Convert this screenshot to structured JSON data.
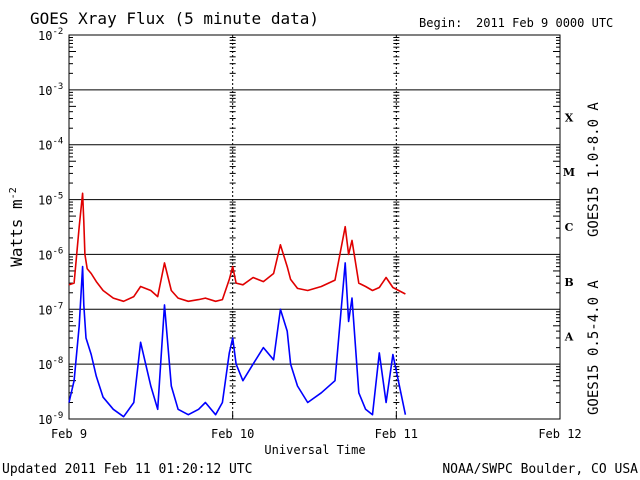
{
  "header": {
    "title": "GOES Xray Flux (5 minute data)",
    "begin_label": "Begin:",
    "begin_value": "2011 Feb 9 0000 UTC"
  },
  "footer": {
    "updated": "Updated 2011 Feb 11 01:20:12 UTC",
    "credit": "NOAA/SWPC Boulder, CO USA"
  },
  "chart_data": {
    "type": "line",
    "title": "GOES Xray Flux (5 minute data)",
    "xlabel": "Universal Time",
    "ylabel": "Watts m",
    "ylabel_exponent": "-2",
    "yscale": "log",
    "ylim": [
      1e-09,
      0.01
    ],
    "xlim": [
      "2011-02-09T00:00",
      "2011-02-12T00:00"
    ],
    "x_ticks": [
      "Feb 9",
      "Feb 10",
      "Feb 11",
      "Feb 12"
    ],
    "y_ticks": [
      {
        "base": "10",
        "exp": "-2",
        "value": 0.01
      },
      {
        "base": "10",
        "exp": "-3",
        "value": 0.001
      },
      {
        "base": "10",
        "exp": "-4",
        "value": 0.0001
      },
      {
        "base": "10",
        "exp": "-5",
        "value": 1e-05
      },
      {
        "base": "10",
        "exp": "-6",
        "value": 1e-06
      },
      {
        "base": "10",
        "exp": "-7",
        "value": 1e-07
      },
      {
        "base": "10",
        "exp": "-8",
        "value": 1e-08
      },
      {
        "base": "10",
        "exp": "-9",
        "value": 1e-09
      }
    ],
    "flare_classes": [
      {
        "label": "X",
        "value": 0.000316
      },
      {
        "label": "M",
        "value": 3.16e-05
      },
      {
        "label": "C",
        "value": 3.16e-06
      },
      {
        "label": "B",
        "value": 3.16e-07
      },
      {
        "label": "A",
        "value": 3.16e-08
      }
    ],
    "grid": "horizontal lines at each decade; dashed vertical lines at day boundaries",
    "series": [
      {
        "name": "GOES15 1.0-8.0 A",
        "color": "#e00000",
        "x": [
          "2011-02-09T00:00",
          "2011-02-09T00:45",
          "2011-02-09T01:30",
          "2011-02-09T02:00",
          "2011-02-09T02:10",
          "2011-02-09T02:20",
          "2011-02-09T02:40",
          "2011-02-09T03:15",
          "2011-02-09T04:00",
          "2011-02-09T05:00",
          "2011-02-09T06:30",
          "2011-02-09T08:00",
          "2011-02-09T09:30",
          "2011-02-09T10:30",
          "2011-02-09T12:00",
          "2011-02-09T13:00",
          "2011-02-09T14:00",
          "2011-02-09T15:00",
          "2011-02-09T16:00",
          "2011-02-09T17:30",
          "2011-02-09T19:00",
          "2011-02-09T20:00",
          "2011-02-09T21:30",
          "2011-02-09T22:30",
          "2011-02-09T23:30",
          "2011-02-10T00:00",
          "2011-02-10T00:30",
          "2011-02-10T01:30",
          "2011-02-10T03:00",
          "2011-02-10T04:30",
          "2011-02-10T06:00",
          "2011-02-10T07:00",
          "2011-02-10T08:00",
          "2011-02-10T08:30",
          "2011-02-10T09:30",
          "2011-02-10T11:00",
          "2011-02-10T13:00",
          "2011-02-10T15:00",
          "2011-02-10T16:30",
          "2011-02-10T17:00",
          "2011-02-10T17:30",
          "2011-02-10T18:30",
          "2011-02-10T19:30",
          "2011-02-10T20:30",
          "2011-02-10T21:30",
          "2011-02-10T22:30",
          "2011-02-10T23:30",
          "2011-02-11T01:20"
        ],
        "y": [
          2.8e-07,
          3e-07,
          3.2e-06,
          1.3e-05,
          4e-06,
          1e-06,
          5.5e-07,
          4.5e-07,
          3.2e-07,
          2.2e-07,
          1.6e-07,
          1.4e-07,
          1.7e-07,
          2.6e-07,
          2.2e-07,
          1.7e-07,
          7e-07,
          2.2e-07,
          1.6e-07,
          1.4e-07,
          1.5e-07,
          1.6e-07,
          1.4e-07,
          1.5e-07,
          3.5e-07,
          6e-07,
          3e-07,
          2.8e-07,
          3.8e-07,
          3.2e-07,
          4.5e-07,
          1.5e-06,
          6e-07,
          3.5e-07,
          2.4e-07,
          2.2e-07,
          2.6e-07,
          3.4e-07,
          3.2e-06,
          1e-06,
          1.8e-06,
          3e-07,
          2.6e-07,
          2.2e-07,
          2.5e-07,
          3.8e-07,
          2.5e-07,
          1.9e-07
        ]
      },
      {
        "name": "GOES15 0.5-4.0 A",
        "color": "#0000ff",
        "x": [
          "2011-02-09T00:00",
          "2011-02-09T00:45",
          "2011-02-09T01:30",
          "2011-02-09T02:00",
          "2011-02-09T02:10",
          "2011-02-09T02:30",
          "2011-02-09T03:15",
          "2011-02-09T04:00",
          "2011-02-09T05:00",
          "2011-02-09T06:30",
          "2011-02-09T08:00",
          "2011-02-09T09:30",
          "2011-02-09T10:30",
          "2011-02-09T12:00",
          "2011-02-09T13:00",
          "2011-02-09T14:00",
          "2011-02-09T15:00",
          "2011-02-09T16:00",
          "2011-02-09T17:30",
          "2011-02-09T19:00",
          "2011-02-09T20:00",
          "2011-02-09T21:30",
          "2011-02-09T22:30",
          "2011-02-09T23:30",
          "2011-02-10T00:00",
          "2011-02-10T00:30",
          "2011-02-10T01:30",
          "2011-02-10T03:00",
          "2011-02-10T04:30",
          "2011-02-10T06:00",
          "2011-02-10T07:00",
          "2011-02-10T08:00",
          "2011-02-10T08:30",
          "2011-02-10T09:30",
          "2011-02-10T11:00",
          "2011-02-10T13:00",
          "2011-02-10T15:00",
          "2011-02-10T16:30",
          "2011-02-10T17:00",
          "2011-02-10T17:30",
          "2011-02-10T18:30",
          "2011-02-10T19:30",
          "2011-02-10T20:30",
          "2011-02-10T21:30",
          "2011-02-10T22:30",
          "2011-02-10T23:30",
          "2011-02-11T01:20"
        ],
        "y": [
          2e-09,
          5e-09,
          5e-08,
          6e-07,
          1.2e-07,
          3e-08,
          1.5e-08,
          6e-09,
          2.5e-09,
          1.5e-09,
          1.1e-09,
          2e-09,
          2.5e-08,
          4e-09,
          1.5e-09,
          1.2e-07,
          4e-09,
          1.5e-09,
          1.2e-09,
          1.5e-09,
          2e-09,
          1.2e-09,
          2e-09,
          1.6e-08,
          3e-08,
          1e-08,
          5e-09,
          1e-08,
          2e-08,
          1.2e-08,
          1e-07,
          4e-08,
          1e-08,
          4e-09,
          2e-09,
          3e-09,
          5e-09,
          7e-07,
          6e-08,
          1.6e-07,
          3e-09,
          1.5e-09,
          1.2e-09,
          1.6e-08,
          2e-09,
          1.5e-08,
          1.2e-09
        ]
      }
    ]
  }
}
